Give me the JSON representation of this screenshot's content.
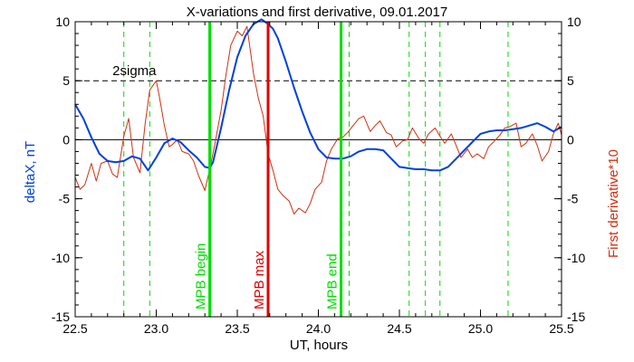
{
  "chart_data": {
    "type": "line",
    "title": "X-variations and first derivative, 09.01.2017",
    "xlabel": "UT, hours",
    "ylabel_left": "deltaX, nT",
    "ylabel_right": "First derivative*10",
    "xlim": [
      22.5,
      25.5
    ],
    "ylim": [
      -15,
      10
    ],
    "x_ticks": [
      22.5,
      23.0,
      23.5,
      24.0,
      24.5,
      25.0,
      25.5
    ],
    "y_ticks": [
      -15,
      -10,
      -5,
      0,
      5,
      10
    ],
    "threshold": {
      "label": "2sigma",
      "value": 5
    },
    "zero_line": 0,
    "solid_markers": [
      {
        "label": "MPB begin",
        "x": 23.33,
        "color": "#00dd00"
      },
      {
        "label": "MPB max",
        "x": 23.69,
        "color": "#e00000"
      },
      {
        "label": "MPB end",
        "x": 24.14,
        "color": "#00dd00"
      }
    ],
    "dashed_markers": [
      22.8,
      22.96,
      24.19,
      24.56,
      24.66,
      24.75,
      25.17
    ],
    "series": [
      {
        "label_ref": "ylabel_left",
        "color": "#0040e0",
        "x": [
          22.5,
          22.55,
          22.6,
          22.65,
          22.7,
          22.75,
          22.8,
          22.85,
          22.9,
          22.95,
          23.0,
          23.05,
          23.1,
          23.15,
          23.2,
          23.25,
          23.3,
          23.33,
          23.35,
          23.4,
          23.45,
          23.5,
          23.55,
          23.6,
          23.65,
          23.69,
          23.72,
          23.75,
          23.8,
          23.85,
          23.9,
          23.95,
          24.0,
          24.05,
          24.1,
          24.15,
          24.2,
          24.25,
          24.3,
          24.35,
          24.4,
          24.45,
          24.5,
          24.55,
          24.6,
          24.65,
          24.7,
          24.75,
          24.8,
          24.85,
          24.9,
          24.95,
          25.0,
          25.05,
          25.1,
          25.15,
          25.2,
          25.25,
          25.3,
          25.35,
          25.4,
          25.45,
          25.5
        ],
        "y": [
          3.0,
          1.8,
          0.2,
          -1.2,
          -1.8,
          -1.9,
          -1.8,
          -1.4,
          -1.6,
          -2.6,
          -1.5,
          -0.3,
          0.1,
          -0.2,
          -0.9,
          -1.5,
          -2.3,
          -2.4,
          -1.9,
          1.0,
          4.2,
          7.0,
          8.8,
          9.8,
          10.2,
          9.8,
          9.4,
          8.6,
          6.6,
          4.4,
          2.4,
          0.6,
          -0.8,
          -1.5,
          -1.6,
          -1.6,
          -1.4,
          -1.0,
          -0.8,
          -0.8,
          -0.9,
          -1.6,
          -2.3,
          -2.4,
          -2.5,
          -2.5,
          -2.6,
          -2.6,
          -2.3,
          -1.6,
          -0.9,
          -0.2,
          0.5,
          0.7,
          0.8,
          0.8,
          0.9,
          1.0,
          1.2,
          1.4,
          1.1,
          0.7,
          1.1
        ]
      },
      {
        "label_ref": "ylabel_right",
        "color": "#d03010",
        "x": [
          22.5,
          22.53,
          22.56,
          22.6,
          22.63,
          22.66,
          22.7,
          22.73,
          22.76,
          22.8,
          22.83,
          22.86,
          22.9,
          22.93,
          22.96,
          23.0,
          23.02,
          23.05,
          23.08,
          23.1,
          23.13,
          23.16,
          23.2,
          23.23,
          23.26,
          23.3,
          23.33,
          23.36,
          23.4,
          23.43,
          23.46,
          23.5,
          23.53,
          23.56,
          23.6,
          23.63,
          23.66,
          23.69,
          23.72,
          23.75,
          23.78,
          23.82,
          23.85,
          23.88,
          23.92,
          23.95,
          23.98,
          24.02,
          24.05,
          24.08,
          24.12,
          24.15,
          24.18,
          24.22,
          24.25,
          24.28,
          24.32,
          24.35,
          24.38,
          24.42,
          24.45,
          24.48,
          24.52,
          24.55,
          24.58,
          24.62,
          24.65,
          24.68,
          24.72,
          24.75,
          24.78,
          24.82,
          24.85,
          24.88,
          24.92,
          24.95,
          24.98,
          25.02,
          25.05,
          25.08,
          25.12,
          25.15,
          25.18,
          25.22,
          25.25,
          25.28,
          25.32,
          25.35,
          25.38,
          25.42,
          25.45,
          25.48,
          25.5
        ],
        "y": [
          -3.2,
          -4.2,
          -3.8,
          -2.0,
          -3.5,
          -2.0,
          -1.8,
          -2.9,
          -3.2,
          0.3,
          1.8,
          -1.5,
          -2.8,
          1.2,
          4.2,
          5.0,
          3.6,
          1.2,
          -0.6,
          -0.4,
          0.0,
          -1.0,
          -1.2,
          -1.8,
          -3.0,
          -4.3,
          -2.5,
          -0.5,
          2.5,
          5.5,
          8.0,
          9.2,
          8.8,
          9.6,
          5.6,
          3.5,
          2.0,
          -1.2,
          -2.6,
          -4.2,
          -4.7,
          -5.2,
          -6.3,
          -5.8,
          -6.2,
          -5.4,
          -4.2,
          -3.6,
          -1.8,
          -0.8,
          0.1,
          0.2,
          0.6,
          1.3,
          1.8,
          2.0,
          0.7,
          1.2,
          1.6,
          0.6,
          0.4,
          -0.6,
          -0.1,
          0.0,
          1.0,
          0.1,
          -0.3,
          0.5,
          1.0,
          0.3,
          -0.3,
          0.5,
          -0.5,
          -1.5,
          -0.8,
          -1.5,
          -1.2,
          -1.6,
          -0.6,
          -0.2,
          0.4,
          1.0,
          1.1,
          1.4,
          -0.6,
          -0.3,
          0.5,
          -0.5,
          -1.8,
          -1.0,
          0.5,
          1.4,
          0.4
        ]
      }
    ]
  }
}
